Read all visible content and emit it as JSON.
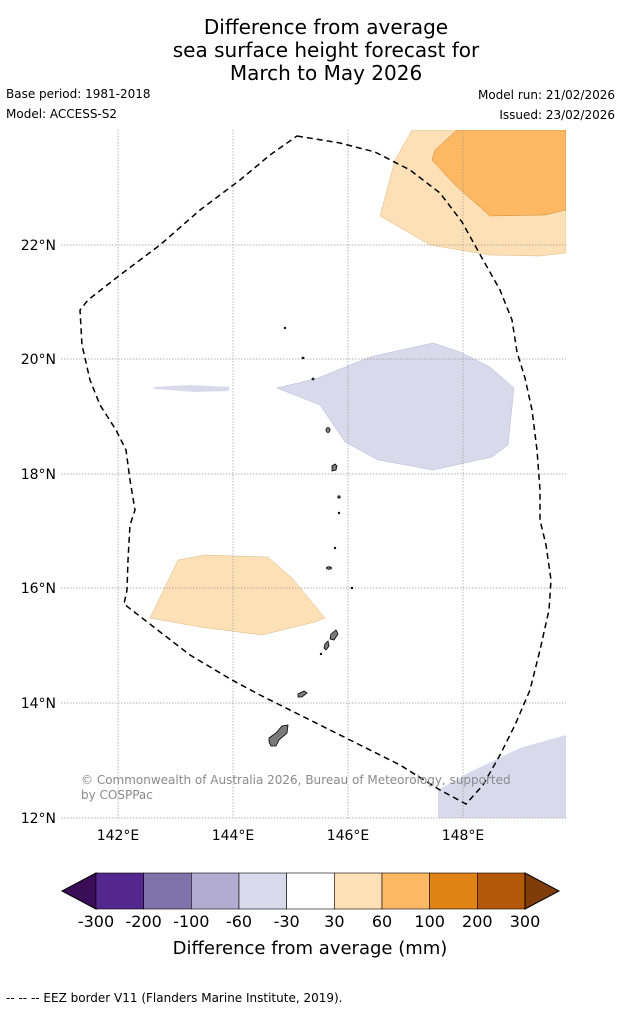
{
  "title": {
    "line1": "Difference from average",
    "line2": "sea surface height forecast for",
    "line3": "March to May 2026"
  },
  "meta": {
    "base_period": "Base period: 1981-2018",
    "model": "Model: ACCESS-S2",
    "model_run": "Model run: 21/02/2026",
    "issued": "Issued: 23/02/2026"
  },
  "map": {
    "lon_ticks": [
      "142°E",
      "144°E",
      "146°E",
      "148°E"
    ],
    "lat_ticks": [
      "22°N",
      "20°N",
      "18°N",
      "16°N",
      "14°N",
      "12°N"
    ],
    "lon_range_deg": [
      141.0,
      149.8
    ],
    "lat_range_deg": [
      12.0,
      24.0
    ],
    "credit_line1": "© Commonwealth of Australia 2026, Bureau of Meteorology, supported",
    "credit_line2": "by COSPPac"
  },
  "colorbar": {
    "tick_labels": [
      "-300",
      "-200",
      "-100",
      "-60",
      "-30",
      "30",
      "60",
      "100",
      "200",
      "300"
    ],
    "colors": [
      "#3b0c57",
      "#54278f",
      "#8073ac",
      "#b2abd2",
      "#d8daeb",
      "#ffffff",
      "#fee0b6",
      "#fdb863",
      "#e08214",
      "#b35806",
      "#7f3b08"
    ],
    "label": "Difference from average (mm)"
  },
  "footer": "--  --  -- EEZ border V11 (Flanders Marine Institute, 2019)."
}
